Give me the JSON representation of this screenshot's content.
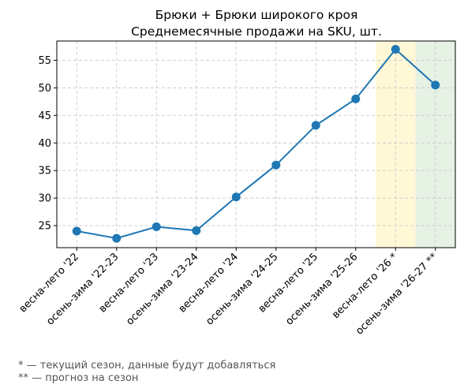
{
  "chart_data": {
    "type": "line",
    "title": "Брюки + Брюки широкого кроя",
    "subtitle": "Среднемесячные продажи на SKU, шт.",
    "xlabel": "",
    "ylabel": "",
    "categories": [
      "весна-лето '22",
      "осень-зима '22-23",
      "весна-лето '23",
      "осень-зима '23-24",
      "весна-лето '24",
      "осень-зима '24-25",
      "весна-лето '25",
      "осень-зима '25-26",
      "весна-лето '26 *",
      "осень-зима '26-27 **"
    ],
    "series": [
      {
        "values": [
          24.0,
          22.7,
          24.8,
          24.1,
          30.2,
          36.0,
          43.2,
          48.0,
          57.0,
          50.5
        ],
        "color": "#1f77b4"
      }
    ],
    "ylim": [
      21,
      58.5
    ],
    "yticks": [
      25,
      30,
      35,
      40,
      45,
      50,
      55
    ],
    "grid": true,
    "highlights": [
      {
        "category": "весна-лето '26 *",
        "color": "#fff8d6",
        "meaning": "current season"
      },
      {
        "category": "осень-зима '26-27 **",
        "color": "#e6f2e4",
        "meaning": "forecast"
      }
    ]
  },
  "footnotes": [
    "* — текущий сезон, данные будут добавляться",
    "** — прогноз на сезон"
  ]
}
